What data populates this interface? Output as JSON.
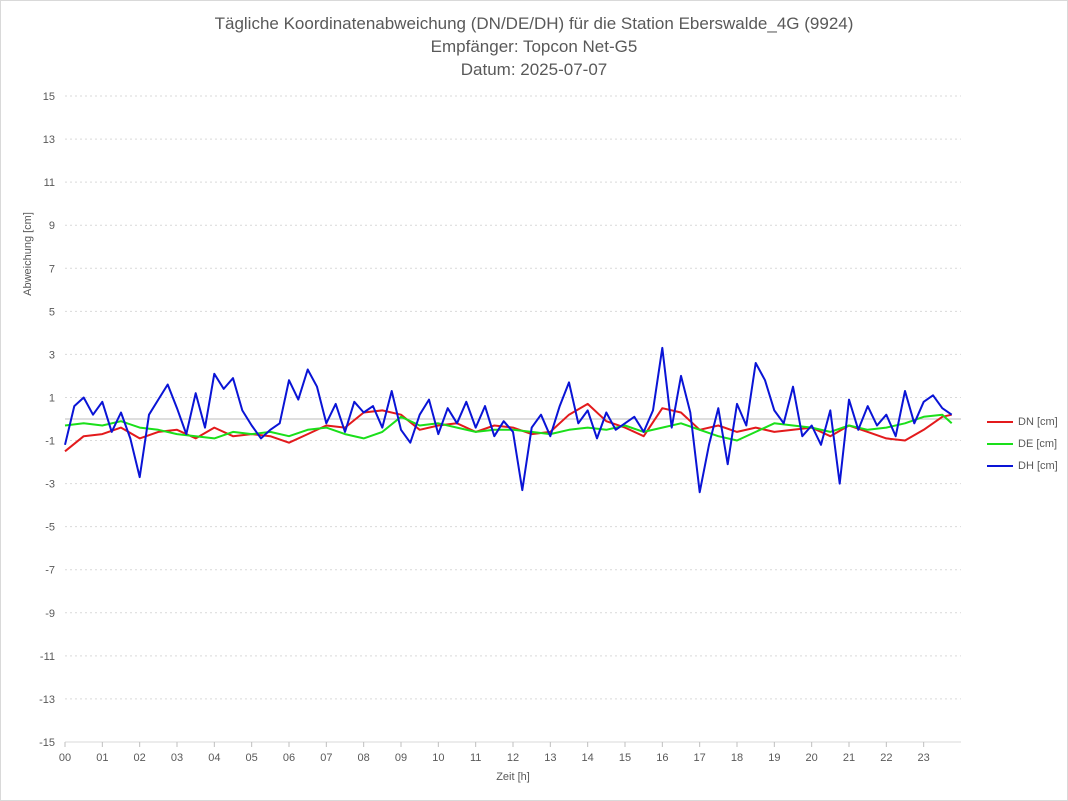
{
  "chart_data": {
    "type": "line",
    "title": "Tägliche Koordinatenabweichung (DN/DE/DH) für die Station Eberswalde_4G (9924)",
    "subtitle1": "Empfänger: Topcon Net-G5",
    "subtitle2": "Datum: 2025-07-07",
    "xlabel": "Zeit [h]",
    "ylabel": "Abweichung [cm]",
    "xlim": [
      0,
      24
    ],
    "ylim": [
      -15,
      15
    ],
    "x_ticks": [
      "00",
      "01",
      "02",
      "03",
      "04",
      "05",
      "06",
      "07",
      "08",
      "09",
      "10",
      "11",
      "12",
      "13",
      "14",
      "15",
      "16",
      "17",
      "18",
      "19",
      "20",
      "21",
      "22",
      "23"
    ],
    "y_ticks": [
      15,
      13,
      11,
      9,
      7,
      5,
      3,
      1,
      -1,
      -3,
      -5,
      -7,
      -9,
      -11,
      -13,
      -15
    ],
    "grid": true,
    "legend_position": "right",
    "colors": {
      "DN": "#e31a1c",
      "DE": "#1adf1a",
      "DH": "#0a14d6",
      "grid": "#d9d9d9",
      "zero": "#a6a6a6"
    },
    "series": [
      {
        "name": "DN [cm]",
        "x": [
          0,
          0.5,
          1,
          1.5,
          2,
          2.5,
          3,
          3.5,
          4,
          4.5,
          5,
          5.5,
          6,
          6.5,
          7,
          7.5,
          8,
          8.5,
          9,
          9.5,
          10,
          10.5,
          11,
          11.5,
          12,
          12.5,
          13,
          13.5,
          14,
          14.5,
          15,
          15.5,
          16,
          16.5,
          17,
          17.5,
          18,
          18.5,
          19,
          19.5,
          20,
          20.5,
          21,
          21.5,
          22,
          22.5,
          23,
          23.5,
          23.75
        ],
        "y": [
          -1.5,
          -0.8,
          -0.7,
          -0.4,
          -0.9,
          -0.6,
          -0.5,
          -0.9,
          -0.4,
          -0.8,
          -0.7,
          -0.8,
          -1.1,
          -0.7,
          -0.3,
          -0.4,
          0.3,
          0.4,
          0.2,
          -0.5,
          -0.3,
          -0.2,
          -0.6,
          -0.3,
          -0.4,
          -0.7,
          -0.6,
          0.2,
          0.7,
          -0.1,
          -0.4,
          -0.8,
          0.5,
          0.3,
          -0.5,
          -0.3,
          -0.6,
          -0.4,
          -0.6,
          -0.5,
          -0.4,
          -0.8,
          -0.3,
          -0.6,
          -0.9,
          -1.0,
          -0.5,
          0.1,
          0.2
        ]
      },
      {
        "name": "DE [cm]",
        "x": [
          0,
          0.5,
          1,
          1.5,
          2,
          2.5,
          3,
          3.5,
          4,
          4.5,
          5,
          5.5,
          6,
          6.5,
          7,
          7.5,
          8,
          8.5,
          9,
          9.5,
          10,
          10.5,
          11,
          11.5,
          12,
          12.5,
          13,
          13.5,
          14,
          14.5,
          15,
          15.5,
          16,
          16.5,
          17,
          17.5,
          18,
          18.5,
          19,
          19.5,
          20,
          20.5,
          21,
          21.5,
          22,
          22.5,
          23,
          23.5,
          23.75
        ],
        "y": [
          -0.3,
          -0.2,
          -0.3,
          -0.1,
          -0.4,
          -0.5,
          -0.7,
          -0.8,
          -0.9,
          -0.6,
          -0.7,
          -0.6,
          -0.8,
          -0.5,
          -0.4,
          -0.7,
          -0.9,
          -0.6,
          0.1,
          -0.3,
          -0.2,
          -0.4,
          -0.6,
          -0.5,
          -0.5,
          -0.6,
          -0.7,
          -0.5,
          -0.4,
          -0.5,
          -0.3,
          -0.6,
          -0.4,
          -0.2,
          -0.5,
          -0.8,
          -1.0,
          -0.6,
          -0.2,
          -0.3,
          -0.4,
          -0.6,
          -0.3,
          -0.5,
          -0.4,
          -0.2,
          0.1,
          0.2,
          -0.2
        ]
      },
      {
        "name": "DH [cm]",
        "x": [
          0,
          0.25,
          0.5,
          0.75,
          1,
          1.25,
          1.5,
          1.75,
          2,
          2.25,
          2.5,
          2.75,
          3,
          3.25,
          3.5,
          3.75,
          4,
          4.25,
          4.5,
          4.75,
          5,
          5.25,
          5.5,
          5.75,
          6,
          6.25,
          6.5,
          6.75,
          7,
          7.25,
          7.5,
          7.75,
          8,
          8.25,
          8.5,
          8.75,
          9,
          9.25,
          9.5,
          9.75,
          10,
          10.25,
          10.5,
          10.75,
          11,
          11.25,
          11.5,
          11.75,
          12,
          12.25,
          12.5,
          12.75,
          13,
          13.25,
          13.5,
          13.75,
          14,
          14.25,
          14.5,
          14.75,
          15,
          15.25,
          15.5,
          15.75,
          16,
          16.25,
          16.5,
          16.75,
          17,
          17.25,
          17.5,
          17.75,
          18,
          18.25,
          18.5,
          18.75,
          19,
          19.25,
          19.5,
          19.75,
          20,
          20.25,
          20.5,
          20.75,
          21,
          21.25,
          21.5,
          21.75,
          22,
          22.25,
          22.5,
          22.75,
          23,
          23.25,
          23.5,
          23.75
        ],
        "y": [
          -1.2,
          0.6,
          1.0,
          0.2,
          0.8,
          -0.6,
          0.3,
          -0.9,
          -2.7,
          0.2,
          0.9,
          1.6,
          0.5,
          -0.7,
          1.2,
          -0.4,
          2.1,
          1.4,
          1.9,
          0.4,
          -0.3,
          -0.9,
          -0.5,
          -0.2,
          1.8,
          0.9,
          2.3,
          1.5,
          -0.2,
          0.7,
          -0.6,
          0.8,
          0.3,
          0.6,
          -0.4,
          1.3,
          -0.5,
          -1.1,
          0.2,
          0.9,
          -0.7,
          0.5,
          -0.2,
          0.8,
          -0.4,
          0.6,
          -0.8,
          -0.1,
          -0.6,
          -3.3,
          -0.4,
          0.2,
          -0.8,
          0.6,
          1.7,
          -0.2,
          0.4,
          -0.9,
          0.3,
          -0.5,
          -0.2,
          0.1,
          -0.6,
          0.4,
          3.3,
          -0.4,
          2.0,
          0.3,
          -3.4,
          -1.2,
          0.5,
          -2.1,
          0.7,
          -0.3,
          2.6,
          1.8,
          0.4,
          -0.2,
          1.5,
          -0.8,
          -0.3,
          -1.2,
          0.4,
          -3.0,
          0.9,
          -0.5,
          0.6,
          -0.3,
          0.2,
          -0.8,
          1.3,
          -0.2,
          0.8,
          1.1,
          0.5,
          0.2
        ]
      }
    ]
  }
}
